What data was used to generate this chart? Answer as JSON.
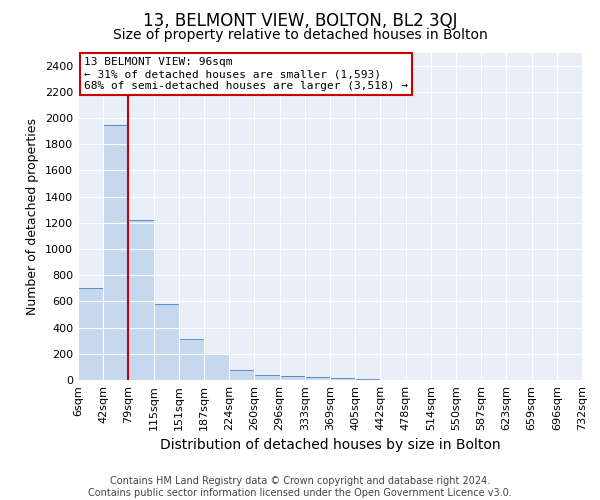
{
  "title": "13, BELMONT VIEW, BOLTON, BL2 3QJ",
  "subtitle": "Size of property relative to detached houses in Bolton",
  "xlabel": "Distribution of detached houses by size in Bolton",
  "ylabel": "Number of detached properties",
  "bin_labels": [
    "6sqm",
    "42sqm",
    "79sqm",
    "115sqm",
    "151sqm",
    "187sqm",
    "224sqm",
    "260sqm",
    "296sqm",
    "333sqm",
    "369sqm",
    "405sqm",
    "442sqm",
    "478sqm",
    "514sqm",
    "550sqm",
    "587sqm",
    "623sqm",
    "659sqm",
    "696sqm",
    "732sqm"
  ],
  "bar_heights": [
    700,
    1950,
    1220,
    580,
    310,
    200,
    75,
    40,
    30,
    25,
    15,
    5,
    0,
    0,
    0,
    0,
    0,
    0,
    0,
    0
  ],
  "bar_color": "#c5d8ed",
  "bar_edge_color": "#5b8ec4",
  "ylim": [
    0,
    2500
  ],
  "yticks": [
    0,
    200,
    400,
    600,
    800,
    1000,
    1200,
    1400,
    1600,
    1800,
    2000,
    2200,
    2400
  ],
  "vline_color": "#cc0000",
  "vline_x_index": 2,
  "annotation_line1": "13 BELMONT VIEW: 96sqm",
  "annotation_line2": "← 31% of detached houses are smaller (1,593)",
  "annotation_line3": "68% of semi-detached houses are larger (3,518) →",
  "annotation_box_color": "#cc0000",
  "footer_line1": "Contains HM Land Registry data © Crown copyright and database right 2024.",
  "footer_line2": "Contains public sector information licensed under the Open Government Licence v3.0.",
  "fig_bg_color": "#ffffff",
  "plot_bg_color": "#e8eff8",
  "grid_color": "#ffffff",
  "title_fontsize": 12,
  "subtitle_fontsize": 10,
  "ylabel_fontsize": 9,
  "xlabel_fontsize": 10,
  "tick_fontsize": 8,
  "annotation_fontsize": 8,
  "footer_fontsize": 7
}
